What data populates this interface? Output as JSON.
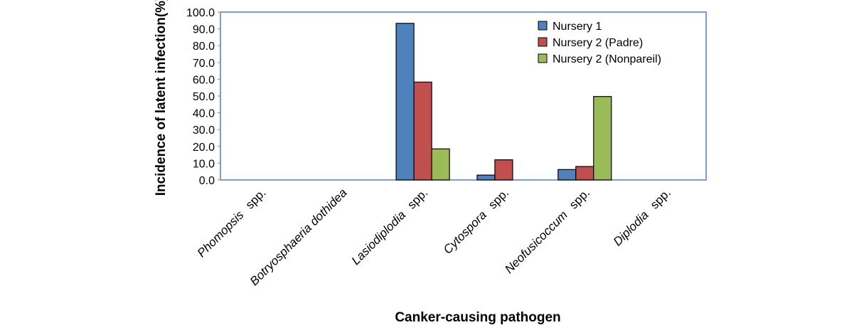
{
  "chart_data": {
    "type": "bar",
    "categories": [
      {
        "name": "Phomopsis",
        "suffix": "spp."
      },
      {
        "name": "Botryosphaeria dothidea",
        "suffix": ""
      },
      {
        "name": "Lasiodiplodia",
        "suffix": "spp."
      },
      {
        "name": "Cytospora",
        "suffix": "spp."
      },
      {
        "name": "Neofusicoccum",
        "suffix": "spp."
      },
      {
        "name": "Diplodia",
        "suffix": "spp."
      }
    ],
    "series": [
      {
        "name": "Nursery 1",
        "color": "#4F81BD",
        "values": [
          0,
          0,
          93.3,
          2.9,
          6.2,
          0
        ]
      },
      {
        "name": "Nursery 2 (Padre)",
        "color": "#C0504D",
        "values": [
          0,
          0,
          58.3,
          12.0,
          8.0,
          0
        ]
      },
      {
        "name": "Nursery 2 (Nonpareil)",
        "color": "#9BBB59",
        "values": [
          0,
          0,
          18.5,
          0,
          49.7,
          0
        ]
      }
    ],
    "ylim": [
      0,
      100
    ],
    "ytick_step": 10,
    "ytick_labels": [
      "0.0",
      "10.0",
      "20.0",
      "30.0",
      "40.0",
      "50.0",
      "60.0",
      "70.0",
      "80.0",
      "90.0",
      "100.0"
    ],
    "xlabel": "Canker-causing pathogen",
    "ylabel": "Incidence of latent infection(%)",
    "legend_position": "top-right",
    "grid": false,
    "plot_border_color": "#4F81BD"
  }
}
